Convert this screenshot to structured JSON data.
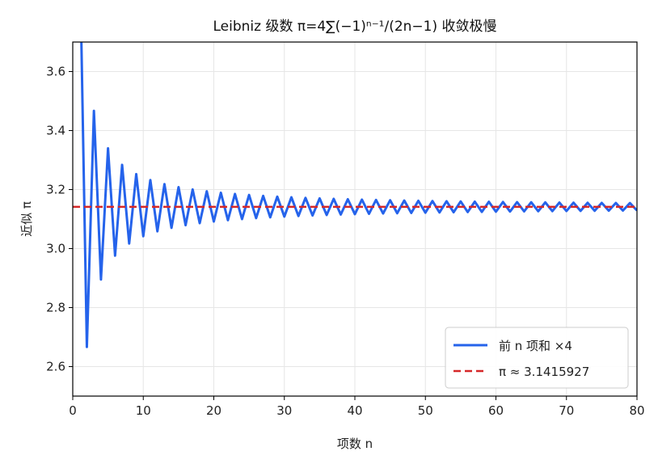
{
  "chart_data": {
    "type": "line",
    "title": "Leibniz 级数 π=4∑(−1)ⁿ⁻¹/(2n−1) 收敛极慢",
    "xlabel": "项数 n",
    "ylabel": "近似 π",
    "xlim": [
      0,
      80
    ],
    "ylim": [
      2.5,
      3.7
    ],
    "xticks": [
      0,
      10,
      20,
      30,
      40,
      50,
      60,
      70,
      80
    ],
    "xtick_labels": [
      "0",
      "10",
      "20",
      "30",
      "40",
      "50",
      "60",
      "70",
      "80"
    ],
    "yticks": [
      2.6,
      2.8,
      3.0,
      3.2,
      3.4,
      3.6
    ],
    "ytick_labels": [
      "2.6",
      "2.8",
      "3.0",
      "3.2",
      "3.4",
      "3.6"
    ],
    "grid": true,
    "legend_position": "bottom-right",
    "series": [
      {
        "name": "前 n 项和 ×4",
        "color": "#2563eb",
        "style": "solid",
        "formula": "4 * sum_{k=1..n} (-1)^(k-1)/(2k-1)",
        "n_range": [
          1,
          80
        ]
      },
      {
        "name": "π ≈ 3.1415927",
        "color": "#d62728",
        "style": "dashed",
        "value": 3.1415927
      }
    ]
  }
}
